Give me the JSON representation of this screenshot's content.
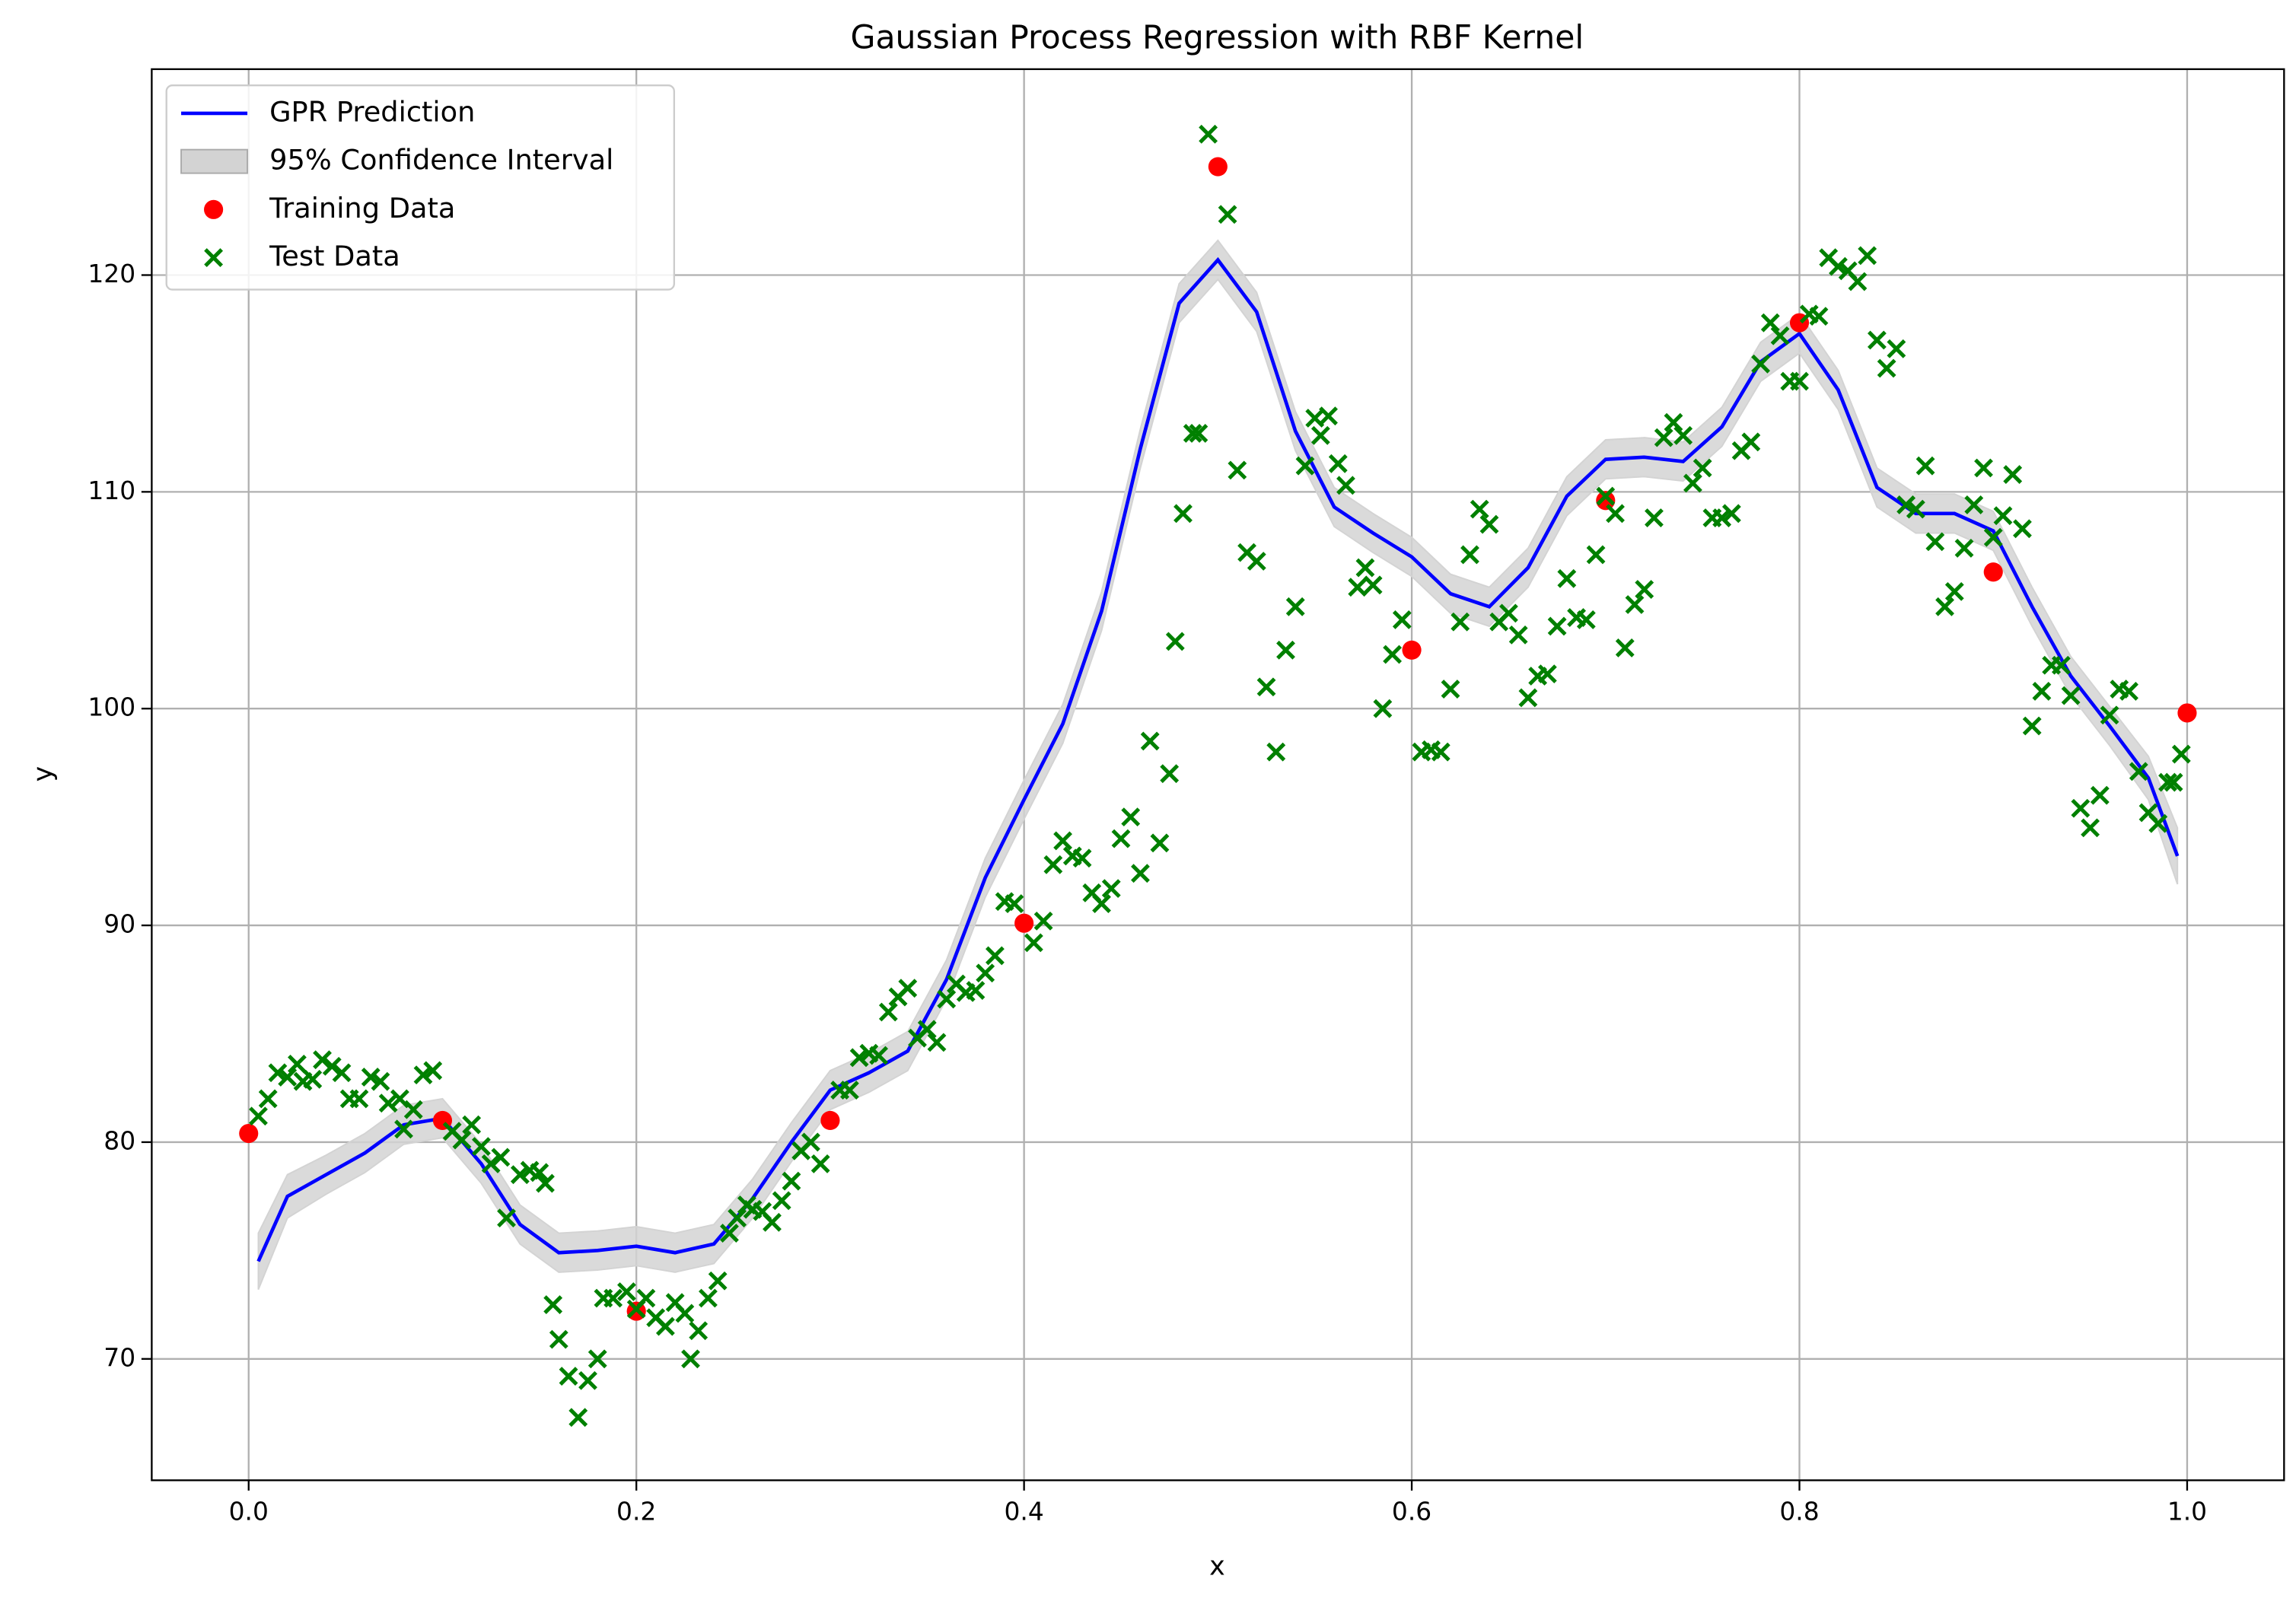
{
  "chart_data": {
    "type": "line",
    "title": "Gaussian Process Regression with RBF Kernel",
    "xlabel": "x",
    "ylabel": "y",
    "xlim": [
      -0.05,
      1.05
    ],
    "ylim": [
      64.4,
      129.5
    ],
    "xticks": [
      {
        "value": 0,
        "label": "0.0"
      },
      0.2,
      0.4,
      0.6,
      0.8,
      {
        "value": 1,
        "label": "1.0"
      }
    ],
    "yticks": [
      70,
      80,
      90,
      100,
      110,
      120
    ],
    "grid": true,
    "legend": "upper left",
    "series": [
      {
        "name": "GPR Prediction",
        "kind": "line",
        "color": "#0000ff",
        "x": [
          0.005,
          0.02,
          0.04,
          0.06,
          0.08,
          0.1,
          0.12,
          0.14,
          0.16,
          0.18,
          0.2,
          0.22,
          0.24,
          0.26,
          0.28,
          0.3,
          0.32,
          0.34,
          0.36,
          0.38,
          0.4,
          0.42,
          0.44,
          0.46,
          0.48,
          0.5,
          0.52,
          0.54,
          0.56,
          0.58,
          0.6,
          0.62,
          0.64,
          0.66,
          0.68,
          0.7,
          0.72,
          0.74,
          0.76,
          0.78,
          0.8,
          0.82,
          0.84,
          0.86,
          0.88,
          0.9,
          0.92,
          0.94,
          0.96,
          0.98,
          0.995
        ],
        "values": [
          74.5,
          77.5,
          78.5,
          79.5,
          80.8,
          81.1,
          79.0,
          76.2,
          74.9,
          75.0,
          75.2,
          74.9,
          75.3,
          77.4,
          80.0,
          82.4,
          83.2,
          84.2,
          87.5,
          92.2,
          95.8,
          99.3,
          104.5,
          112.0,
          118.7,
          120.7,
          118.3,
          112.8,
          109.3,
          108.1,
          107.0,
          105.3,
          104.7,
          106.5,
          109.8,
          111.5,
          111.6,
          111.4,
          113.0,
          116.0,
          117.3,
          114.7,
          110.2,
          109.0,
          109.0,
          108.2,
          104.7,
          101.5,
          99.2,
          96.8,
          93.2
        ]
      },
      {
        "name": "95% Confidence Interval",
        "kind": "band",
        "color": "#d3d3d3",
        "x": [
          0.005,
          0.02,
          0.04,
          0.06,
          0.08,
          0.1,
          0.12,
          0.14,
          0.16,
          0.18,
          0.2,
          0.22,
          0.24,
          0.26,
          0.28,
          0.3,
          0.32,
          0.34,
          0.36,
          0.38,
          0.4,
          0.42,
          0.44,
          0.46,
          0.48,
          0.5,
          0.52,
          0.54,
          0.56,
          0.58,
          0.6,
          0.62,
          0.64,
          0.66,
          0.68,
          0.7,
          0.72,
          0.74,
          0.76,
          0.78,
          0.8,
          0.82,
          0.84,
          0.86,
          0.88,
          0.9,
          0.92,
          0.94,
          0.96,
          0.98,
          0.995
        ],
        "lower": [
          73.2,
          76.5,
          77.6,
          78.6,
          79.9,
          80.2,
          78.1,
          75.3,
          74.0,
          74.1,
          74.3,
          74.0,
          74.4,
          76.5,
          79.1,
          81.5,
          82.3,
          83.3,
          86.6,
          91.3,
          94.9,
          98.4,
          103.6,
          111.1,
          117.8,
          119.8,
          117.4,
          111.9,
          108.4,
          107.2,
          106.1,
          104.4,
          103.8,
          105.6,
          108.9,
          110.6,
          110.7,
          110.5,
          112.1,
          115.1,
          116.4,
          113.8,
          109.3,
          108.1,
          108.1,
          107.3,
          103.8,
          100.6,
          98.3,
          95.8,
          91.9
        ],
        "upper": [
          75.8,
          78.5,
          79.4,
          80.4,
          81.7,
          82.0,
          79.9,
          77.1,
          75.8,
          75.9,
          76.1,
          75.8,
          76.2,
          78.3,
          80.9,
          83.3,
          84.1,
          85.1,
          88.4,
          93.1,
          96.7,
          100.2,
          105.4,
          112.9,
          119.6,
          121.6,
          119.2,
          113.7,
          110.2,
          109.0,
          107.9,
          106.2,
          105.6,
          107.4,
          110.7,
          112.4,
          112.5,
          112.3,
          113.9,
          116.9,
          118.2,
          115.6,
          111.1,
          109.9,
          109.9,
          109.1,
          105.6,
          102.4,
          100.1,
          97.8,
          94.5
        ]
      },
      {
        "name": "Training Data",
        "kind": "scatter",
        "marker": "circle",
        "color": "#ff0000",
        "x": [
          0,
          0.1,
          0.2,
          0.3,
          0.4,
          0.5,
          0.6,
          0.7,
          0.8,
          0.9,
          1
        ],
        "values": [
          80.4,
          81.0,
          72.2,
          81.0,
          90.1,
          125.0,
          102.7,
          109.6,
          117.8,
          106.3,
          99.8
        ]
      },
      {
        "name": "Test Data",
        "kind": "scatter",
        "marker": "x",
        "color": "#008000",
        "x": [
          0.005,
          0.01,
          0.015,
          0.02,
          0.025,
          0.028,
          0.033,
          0.038,
          0.043,
          0.048,
          0.052,
          0.057,
          0.063,
          0.068,
          0.072,
          0.078,
          0.08,
          0.085,
          0.09,
          0.095,
          0.105,
          0.11,
          0.115,
          0.12,
          0.125,
          0.13,
          0.133,
          0.14,
          0.145,
          0.15,
          0.153,
          0.157,
          0.16,
          0.165,
          0.17,
          0.175,
          0.18,
          0.183,
          0.188,
          0.195,
          0.2,
          0.205,
          0.21,
          0.215,
          0.22,
          0.225,
          0.228,
          0.232,
          0.237,
          0.242,
          0.248,
          0.252,
          0.257,
          0.26,
          0.265,
          0.27,
          0.275,
          0.28,
          0.285,
          0.29,
          0.295,
          0.305,
          0.31,
          0.315,
          0.32,
          0.325,
          0.33,
          0.335,
          0.34,
          0.345,
          0.35,
          0.355,
          0.36,
          0.365,
          0.37,
          0.375,
          0.38,
          0.385,
          0.39,
          0.395,
          0.405,
          0.41,
          0.415,
          0.42,
          0.425,
          0.43,
          0.435,
          0.44,
          0.445,
          0.45,
          0.455,
          0.46,
          0.465,
          0.47,
          0.475,
          0.478,
          0.482,
          0.487,
          0.49,
          0.495,
          0.505,
          0.51,
          0.515,
          0.52,
          0.525,
          0.53,
          0.535,
          0.54,
          0.545,
          0.55,
          0.553,
          0.557,
          0.562,
          0.566,
          0.572,
          0.576,
          0.58,
          0.585,
          0.59,
          0.595,
          0.605,
          0.61,
          0.615,
          0.62,
          0.625,
          0.63,
          0.635,
          0.64,
          0.645,
          0.65,
          0.655,
          0.66,
          0.665,
          0.67,
          0.675,
          0.68,
          0.685,
          0.69,
          0.695,
          0.7,
          0.705,
          0.71,
          0.715,
          0.72,
          0.725,
          0.73,
          0.735,
          0.74,
          0.745,
          0.75,
          0.755,
          0.76,
          0.765,
          0.77,
          0.775,
          0.78,
          0.785,
          0.79,
          0.795,
          0.8,
          0.805,
          0.81,
          0.815,
          0.82,
          0.825,
          0.83,
          0.835,
          0.84,
          0.845,
          0.85,
          0.855,
          0.86,
          0.865,
          0.87,
          0.875,
          0.88,
          0.885,
          0.89,
          0.895,
          0.9,
          0.905,
          0.91,
          0.915,
          0.92,
          0.925,
          0.93,
          0.935,
          0.94,
          0.945,
          0.95,
          0.955,
          0.96,
          0.965,
          0.97,
          0.975,
          0.98,
          0.985,
          0.99,
          0.993,
          0.997
        ],
        "values": [
          81.2,
          82,
          83.2,
          83,
          83.6,
          82.8,
          82.9,
          83.8,
          83.5,
          83.2,
          82,
          82,
          83,
          82.8,
          81.8,
          82,
          80.6,
          81.5,
          83.1,
          83.3,
          80.5,
          80.1,
          80.8,
          79.8,
          79,
          79.3,
          76.5,
          78.5,
          78.7,
          78.6,
          78.1,
          72.5,
          70.9,
          69.2,
          67.3,
          69,
          70,
          72.8,
          72.8,
          73.1,
          72.3,
          72.8,
          71.9,
          71.5,
          72.6,
          72.1,
          70,
          71.3,
          72.8,
          73.6,
          75.8,
          76.5,
          77.1,
          76.9,
          76.8,
          76.3,
          77.3,
          78.2,
          79.6,
          80,
          79,
          82.4,
          82.4,
          83.9,
          84.1,
          84,
          86,
          86.7,
          87.1,
          84.8,
          85.2,
          84.6,
          86.6,
          87.3,
          86.9,
          87,
          87.8,
          88.6,
          91.1,
          91,
          89.2,
          90.2,
          92.8,
          93.9,
          93.2,
          93.1,
          91.5,
          91,
          91.7,
          94,
          95,
          92.4,
          98.5,
          93.8,
          97,
          103.1,
          109,
          112.7,
          112.7,
          126.5,
          122.8,
          111,
          107.2,
          106.8,
          101,
          98,
          102.7,
          104.7,
          111.2,
          113.4,
          112.6,
          113.5,
          111.3,
          110.3,
          105.6,
          106.5,
          105.7,
          100,
          102.5,
          104.1,
          98,
          98.1,
          98,
          100.9,
          104,
          107.1,
          109.2,
          108.5,
          104,
          104.4,
          103.4,
          100.5,
          101.5,
          101.6,
          103.8,
          106,
          104.2,
          104.1,
          107.1,
          109.8,
          109,
          102.8,
          104.8,
          105.5,
          108.8,
          112.5,
          113.2,
          112.6,
          110.4,
          111.1,
          108.8,
          108.8,
          109,
          111.9,
          112.3,
          115.9,
          117.8,
          117.2,
          115.1,
          115.1,
          118.2,
          118.1,
          120.8,
          120.4,
          120.2,
          119.7,
          120.9,
          117,
          115.7,
          116.6,
          109.4,
          109.2,
          111.2,
          107.7,
          104.7,
          105.4,
          107.4,
          109.4,
          111.1,
          107.9,
          108.9,
          110.8,
          108.3,
          99.2,
          100.8,
          102,
          102,
          100.6,
          95.4,
          94.5,
          96,
          99.7,
          100.9,
          100.8,
          97.1,
          95.2,
          94.7,
          96.6,
          96.6,
          97.9
        ]
      }
    ]
  }
}
